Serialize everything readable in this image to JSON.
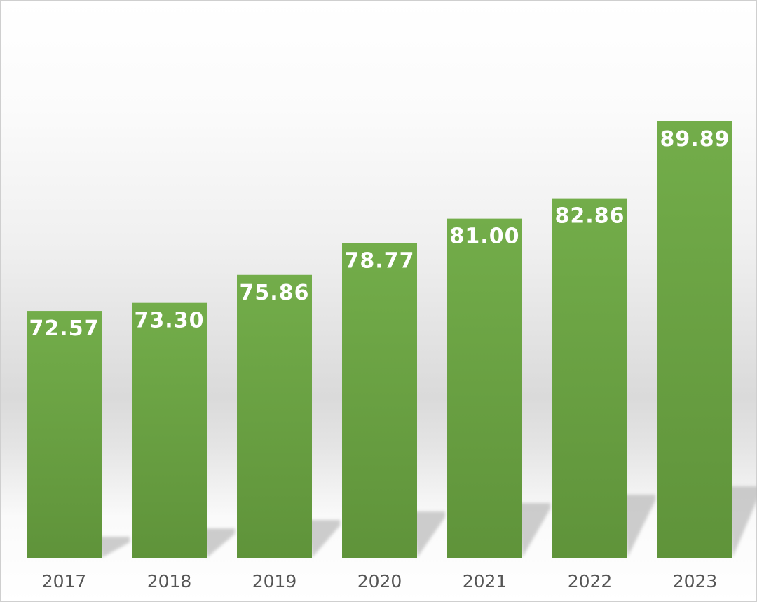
{
  "chart_data": {
    "type": "bar",
    "title": "",
    "xlabel": "",
    "ylabel": "",
    "categories": [
      "2017",
      "2018",
      "2019",
      "2020",
      "2021",
      "2022",
      "2023"
    ],
    "values": [
      72.57,
      73.3,
      75.86,
      78.77,
      81.0,
      82.86,
      89.89
    ],
    "value_labels": [
      "72.57",
      "73.30",
      "75.86",
      "78.77",
      "81.00",
      "82.86",
      "89.89"
    ],
    "ylim": [
      50,
      100
    ],
    "grid": false,
    "bar_color": "#6aa447"
  }
}
